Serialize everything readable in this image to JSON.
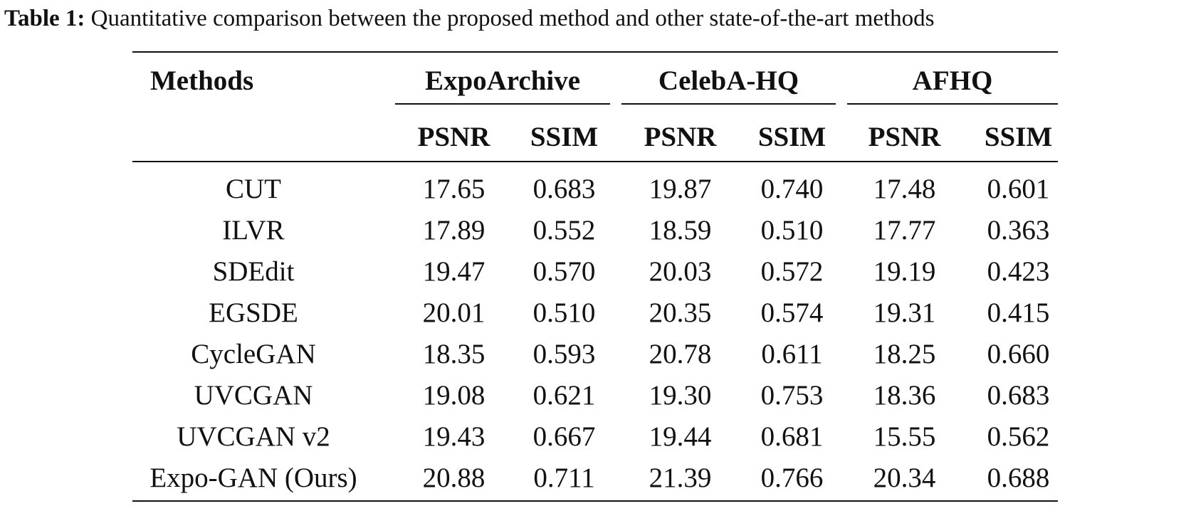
{
  "caption": {
    "label": "Table 1:",
    "text": "Quantitative comparison between the proposed method and other state-of-the-art methods"
  },
  "table": {
    "header": {
      "methods": "Methods",
      "datasets": [
        "ExpoArchive",
        "CelebA-HQ",
        "AFHQ"
      ],
      "metrics": [
        "PSNR",
        "SSIM",
        "PSNR",
        "SSIM",
        "PSNR",
        "SSIM"
      ]
    },
    "rows": [
      {
        "method": "CUT",
        "values": [
          "17.65",
          "0.683",
          "19.87",
          "0.740",
          "17.48",
          "0.601"
        ]
      },
      {
        "method": "ILVR",
        "values": [
          "17.89",
          "0.552",
          "18.59",
          "0.510",
          "17.77",
          "0.363"
        ]
      },
      {
        "method": "SDEdit",
        "values": [
          "19.47",
          "0.570",
          "20.03",
          "0.572",
          "19.19",
          "0.423"
        ]
      },
      {
        "method": "EGSDE",
        "values": [
          "20.01",
          "0.510",
          "20.35",
          "0.574",
          "19.31",
          "0.415"
        ]
      },
      {
        "method": "CycleGAN",
        "values": [
          "18.35",
          "0.593",
          "20.78",
          "0.611",
          "18.25",
          "0.660"
        ]
      },
      {
        "method": "UVCGAN",
        "values": [
          "19.08",
          "0.621",
          "19.30",
          "0.753",
          "18.36",
          "0.683"
        ]
      },
      {
        "method": "UVCGAN v2",
        "values": [
          "19.43",
          "0.667",
          "19.44",
          "0.681",
          "15.55",
          "0.562"
        ]
      },
      {
        "method": "Expo-GAN (Ours)",
        "values": [
          "20.88",
          "0.711",
          "21.39",
          "0.766",
          "20.34",
          "0.688"
        ]
      }
    ]
  }
}
